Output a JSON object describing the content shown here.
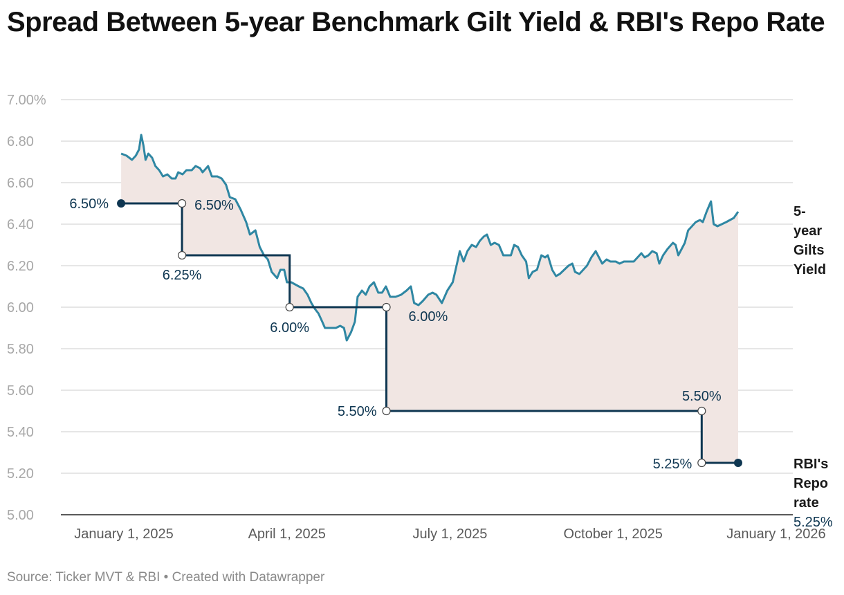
{
  "title": "Spread Between 5-year Benchmark Gilt Yield & RBI's Repo Rate",
  "source": "Source: Ticker MVT & RBI • Created with Datawrapper",
  "colors": {
    "yield_line": "#2f87a3",
    "repo_line": "#0e3651",
    "spread_fill": "#f1e6e3"
  },
  "chart_data": {
    "type": "line",
    "title": "Spread Between 5-year Benchmark Gilt Yield & RBI's Repo Rate",
    "xlabel": "",
    "ylabel": "",
    "ylim": [
      5.0,
      7.0
    ],
    "x_unit": "months since January 1, 2025",
    "y_ticks": [
      "7.00%",
      "6.80",
      "6.60",
      "6.40",
      "6.20",
      "6.00",
      "5.80",
      "5.60",
      "5.40",
      "5.20",
      "5.00"
    ],
    "x_ticks": [
      {
        "x": 0,
        "label": "January 1, 2025"
      },
      {
        "x": 3,
        "label": "April 1, 2025"
      },
      {
        "x": 6,
        "label": "July 1, 2025"
      },
      {
        "x": 9,
        "label": "October 1, 2025"
      },
      {
        "x": 12,
        "label": "January 1, 2026"
      }
    ],
    "series": [
      {
        "name": "5-year Gilts Yield",
        "label_lines": [
          "5-",
          "year",
          "Gilts",
          "Yield"
        ],
        "points": [
          [
            -0.05,
            6.74
          ],
          [
            0.05,
            6.73
          ],
          [
            0.15,
            6.71
          ],
          [
            0.22,
            6.73
          ],
          [
            0.28,
            6.76
          ],
          [
            0.32,
            6.83
          ],
          [
            0.36,
            6.78
          ],
          [
            0.4,
            6.71
          ],
          [
            0.45,
            6.74
          ],
          [
            0.52,
            6.72
          ],
          [
            0.58,
            6.68
          ],
          [
            0.65,
            6.66
          ],
          [
            0.72,
            6.63
          ],
          [
            0.8,
            6.64
          ],
          [
            0.88,
            6.62
          ],
          [
            0.95,
            6.62
          ],
          [
            1.0,
            6.65
          ],
          [
            1.08,
            6.64
          ],
          [
            1.15,
            6.66
          ],
          [
            1.25,
            6.66
          ],
          [
            1.32,
            6.68
          ],
          [
            1.4,
            6.67
          ],
          [
            1.45,
            6.65
          ],
          [
            1.55,
            6.68
          ],
          [
            1.62,
            6.63
          ],
          [
            1.72,
            6.63
          ],
          [
            1.8,
            6.62
          ],
          [
            1.88,
            6.59
          ],
          [
            1.95,
            6.53
          ],
          [
            2.05,
            6.52
          ],
          [
            2.15,
            6.47
          ],
          [
            2.25,
            6.41
          ],
          [
            2.32,
            6.35
          ],
          [
            2.42,
            6.37
          ],
          [
            2.5,
            6.29
          ],
          [
            2.58,
            6.25
          ],
          [
            2.65,
            6.23
          ],
          [
            2.72,
            6.17
          ],
          [
            2.82,
            6.14
          ],
          [
            2.88,
            6.18
          ],
          [
            2.95,
            6.18
          ],
          [
            3.0,
            6.12
          ],
          [
            3.08,
            6.12
          ],
          [
            3.15,
            6.11
          ],
          [
            3.22,
            6.1
          ],
          [
            3.3,
            6.09
          ],
          [
            3.38,
            6.06
          ],
          [
            3.45,
            6.02
          ],
          [
            3.52,
            5.99
          ],
          [
            3.58,
            5.97
          ],
          [
            3.65,
            5.93
          ],
          [
            3.7,
            5.9
          ],
          [
            3.8,
            5.9
          ],
          [
            3.9,
            5.9
          ],
          [
            3.98,
            5.91
          ],
          [
            4.05,
            5.9
          ],
          [
            4.1,
            5.84
          ],
          [
            4.18,
            5.88
          ],
          [
            4.25,
            5.93
          ],
          [
            4.3,
            6.05
          ],
          [
            4.38,
            6.08
          ],
          [
            4.45,
            6.06
          ],
          [
            4.52,
            6.1
          ],
          [
            4.6,
            6.12
          ],
          [
            4.68,
            6.07
          ],
          [
            4.75,
            6.07
          ],
          [
            4.82,
            6.1
          ],
          [
            4.9,
            6.05
          ],
          [
            5.0,
            6.05
          ],
          [
            5.1,
            6.06
          ],
          [
            5.2,
            6.08
          ],
          [
            5.28,
            6.1
          ],
          [
            5.34,
            6.02
          ],
          [
            5.42,
            6.01
          ],
          [
            5.5,
            6.03
          ],
          [
            5.6,
            6.06
          ],
          [
            5.68,
            6.07
          ],
          [
            5.75,
            6.06
          ],
          [
            5.85,
            6.02
          ],
          [
            5.95,
            6.08
          ],
          [
            6.05,
            6.12
          ],
          [
            6.12,
            6.2
          ],
          [
            6.18,
            6.27
          ],
          [
            6.25,
            6.22
          ],
          [
            6.32,
            6.27
          ],
          [
            6.4,
            6.3
          ],
          [
            6.48,
            6.29
          ],
          [
            6.55,
            6.32
          ],
          [
            6.62,
            6.34
          ],
          [
            6.68,
            6.35
          ],
          [
            6.75,
            6.3
          ],
          [
            6.82,
            6.31
          ],
          [
            6.9,
            6.3
          ],
          [
            6.98,
            6.25
          ],
          [
            7.05,
            6.25
          ],
          [
            7.12,
            6.25
          ],
          [
            7.18,
            6.3
          ],
          [
            7.25,
            6.29
          ],
          [
            7.32,
            6.25
          ],
          [
            7.4,
            6.22
          ],
          [
            7.45,
            6.14
          ],
          [
            7.52,
            6.17
          ],
          [
            7.6,
            6.18
          ],
          [
            7.68,
            6.25
          ],
          [
            7.75,
            6.24
          ],
          [
            7.8,
            6.25
          ],
          [
            7.88,
            6.18
          ],
          [
            7.95,
            6.15
          ],
          [
            8.02,
            6.16
          ],
          [
            8.1,
            6.18
          ],
          [
            8.18,
            6.2
          ],
          [
            8.25,
            6.21
          ],
          [
            8.3,
            6.17
          ],
          [
            8.38,
            6.16
          ],
          [
            8.45,
            6.18
          ],
          [
            8.52,
            6.2
          ],
          [
            8.6,
            6.24
          ],
          [
            8.68,
            6.27
          ],
          [
            8.72,
            6.25
          ],
          [
            8.8,
            6.21
          ],
          [
            8.88,
            6.23
          ],
          [
            8.95,
            6.22
          ],
          [
            9.05,
            6.22
          ],
          [
            9.12,
            6.21
          ],
          [
            9.2,
            6.22
          ],
          [
            9.28,
            6.22
          ],
          [
            9.38,
            6.22
          ],
          [
            9.45,
            6.24
          ],
          [
            9.52,
            6.26
          ],
          [
            9.58,
            6.24
          ],
          [
            9.65,
            6.25
          ],
          [
            9.72,
            6.27
          ],
          [
            9.8,
            6.26
          ],
          [
            9.85,
            6.21
          ],
          [
            9.92,
            6.25
          ],
          [
            10.0,
            6.28
          ],
          [
            10.1,
            6.31
          ],
          [
            10.15,
            6.3
          ],
          [
            10.2,
            6.25
          ],
          [
            10.28,
            6.29
          ],
          [
            10.32,
            6.31
          ],
          [
            10.38,
            6.37
          ],
          [
            10.45,
            6.39
          ],
          [
            10.52,
            6.41
          ],
          [
            10.6,
            6.42
          ],
          [
            10.65,
            6.41
          ],
          [
            10.72,
            6.46
          ],
          [
            10.8,
            6.51
          ],
          [
            10.85,
            6.4
          ],
          [
            10.92,
            6.39
          ],
          [
            11.0,
            6.4
          ],
          [
            11.08,
            6.41
          ],
          [
            11.15,
            6.42
          ],
          [
            11.22,
            6.43
          ],
          [
            11.3,
            6.46
          ]
        ]
      },
      {
        "name": "RBI's Repo rate",
        "label_lines": [
          "RBI's",
          "Repo",
          "rate"
        ],
        "end_value": "5.25%",
        "steps": [
          {
            "x": -0.05,
            "value": 6.5,
            "label": "6.50%"
          },
          {
            "x": 1.07,
            "value": 6.5,
            "label": "6.50%"
          },
          {
            "x": 1.07,
            "value": 6.25,
            "label": "6.25%"
          },
          {
            "x": 3.05,
            "value": 6.25
          },
          {
            "x": 3.05,
            "value": 6.0,
            "label": "6.00%"
          },
          {
            "x": 4.83,
            "value": 6.0,
            "label": "6.00%"
          },
          {
            "x": 4.83,
            "value": 5.5,
            "label": "5.50%"
          },
          {
            "x": 10.63,
            "value": 5.5,
            "label": "5.50%"
          },
          {
            "x": 10.63,
            "value": 5.25,
            "label": "5.25%"
          },
          {
            "x": 11.3,
            "value": 5.25
          }
        ]
      }
    ]
  }
}
